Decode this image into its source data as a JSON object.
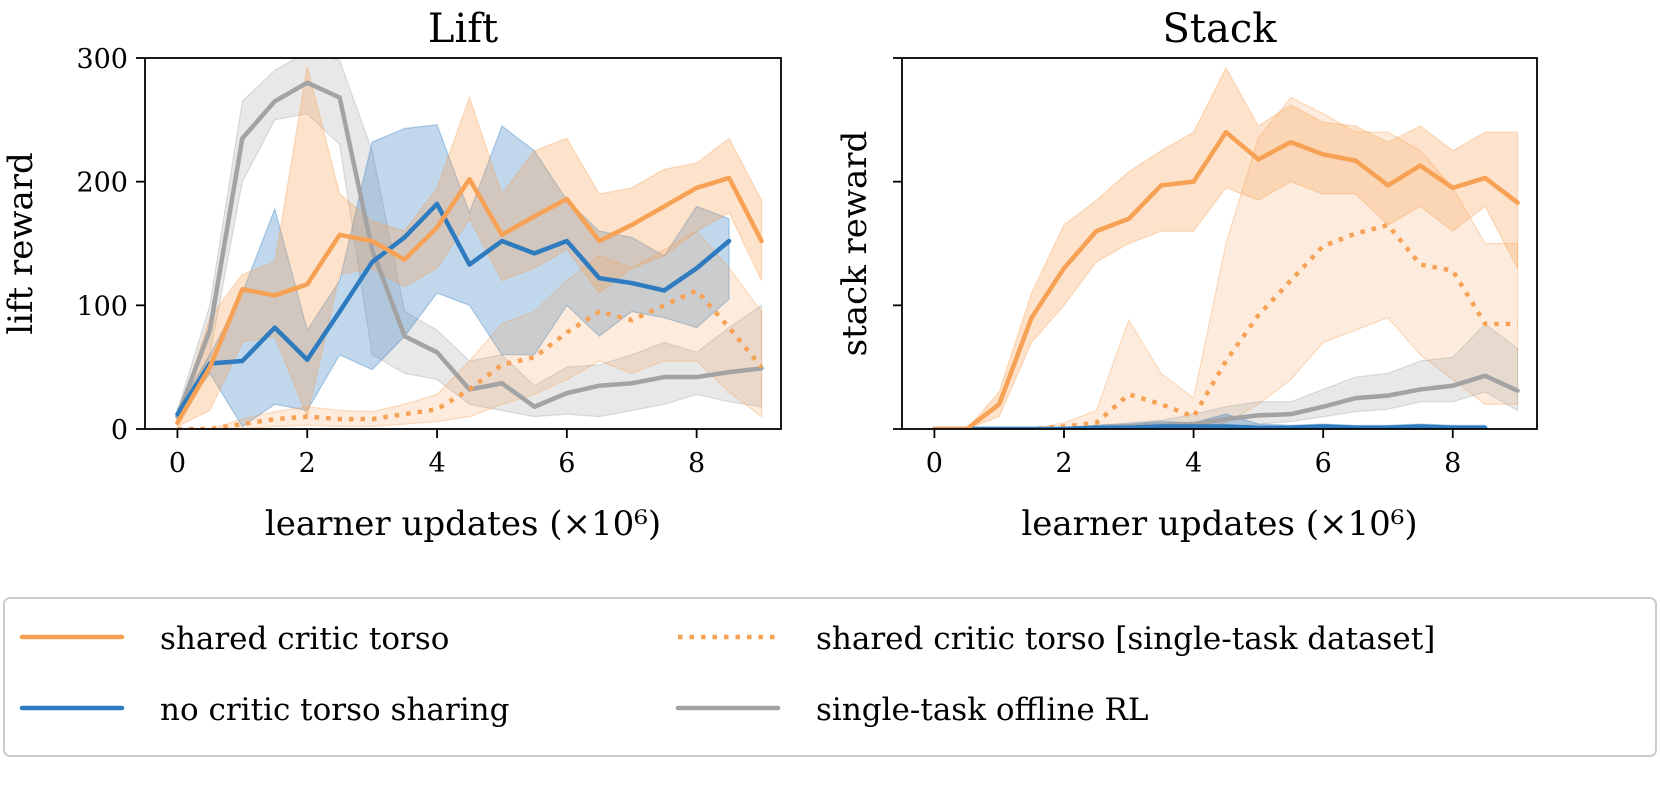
{
  "colors": {
    "shared": "#f7a155",
    "nosharing": "#2f7bbf",
    "offline": "#a3a3a3"
  },
  "legend": {
    "items": [
      {
        "label": "shared critic torso",
        "series": "shared"
      },
      {
        "label": "shared critic torso [single-task dataset]",
        "series": "shared_single"
      },
      {
        "label": "no critic torso sharing",
        "series": "nosharing"
      },
      {
        "label": "single-task offline RL",
        "series": "offline"
      }
    ]
  },
  "chart_data": [
    {
      "type": "line",
      "title": "Lift",
      "xlabel": "learner updates (×10⁶)",
      "ylabel": "lift reward",
      "xlim": [
        -0.5,
        9.3
      ],
      "ylim": [
        0,
        300
      ],
      "xticks": [
        0,
        2,
        4,
        6,
        8
      ],
      "yticks": [
        0,
        100,
        200,
        300
      ],
      "show_ytick_labels": true,
      "series": [
        {
          "name": "single-task offline RL",
          "key": "offline",
          "style": "solid",
          "x": [
            0,
            0.5,
            1,
            1.5,
            2,
            2.5,
            3,
            3.5,
            4,
            4.5,
            5,
            5.5,
            6,
            6.5,
            7,
            7.5,
            8,
            8.5,
            9
          ],
          "y": [
            10,
            80,
            235,
            265,
            280,
            268,
            145,
            75,
            62,
            32,
            37,
            18,
            29,
            35,
            37,
            42,
            42,
            46,
            49
          ],
          "lower": [
            5,
            60,
            200,
            250,
            255,
            230,
            60,
            45,
            40,
            20,
            15,
            10,
            12,
            10,
            15,
            20,
            28,
            22,
            18
          ],
          "upper": [
            15,
            100,
            265,
            290,
            305,
            298,
            225,
            95,
            80,
            55,
            60,
            35,
            50,
            52,
            60,
            70,
            62,
            82,
            100
          ]
        },
        {
          "name": "no critic torso sharing",
          "key": "nosharing",
          "style": "solid",
          "x": [
            0,
            0.5,
            1,
            1.5,
            2,
            2.5,
            3,
            3.5,
            4,
            4.5,
            5,
            5.5,
            6,
            6.5,
            7,
            7.5,
            8,
            8.5
          ],
          "y": [
            12,
            53,
            55,
            82,
            56,
            95,
            135,
            155,
            182,
            133,
            152,
            142,
            152,
            122,
            118,
            112,
            130,
            152
          ],
          "lower": [
            8,
            45,
            2,
            20,
            15,
            60,
            48,
            75,
            110,
            100,
            60,
            60,
            100,
            75,
            95,
            90,
            82,
            105
          ],
          "upper": [
            16,
            60,
            110,
            178,
            80,
            120,
            232,
            243,
            246,
            175,
            245,
            225,
            185,
            160,
            155,
            140,
            180,
            170
          ]
        },
        {
          "name": "shared critic torso",
          "key": "shared",
          "style": "solid",
          "x": [
            0,
            0.5,
            1,
            1.5,
            2,
            2.5,
            3,
            3.5,
            4,
            4.5,
            5,
            5.5,
            6,
            6.5,
            7,
            7.5,
            8,
            8.5,
            9
          ],
          "y": [
            5,
            50,
            113,
            108,
            117,
            157,
            152,
            137,
            163,
            202,
            157,
            172,
            186,
            152,
            165,
            180,
            195,
            203,
            152
          ],
          "lower": [
            2,
            15,
            70,
            75,
            10,
            125,
            130,
            115,
            130,
            170,
            120,
            130,
            145,
            110,
            130,
            140,
            160,
            175,
            120
          ],
          "upper": [
            8,
            90,
            125,
            135,
            293,
            190,
            168,
            160,
            195,
            268,
            190,
            225,
            235,
            190,
            195,
            210,
            215,
            235,
            185
          ]
        },
        {
          "name": "shared critic torso [single-task dataset]",
          "key": "shared",
          "style": "dotted",
          "x": [
            0,
            0.5,
            1,
            1.5,
            2,
            2.5,
            3,
            3.5,
            4,
            4.5,
            5,
            5.5,
            6,
            6.5,
            7,
            7.5,
            8,
            8.5,
            9
          ],
          "y": [
            0,
            0,
            4,
            8,
            10,
            8,
            8,
            12,
            16,
            32,
            52,
            58,
            78,
            95,
            88,
            100,
            112,
            82,
            50
          ],
          "lower": [
            0,
            0,
            0,
            2,
            3,
            2,
            2,
            4,
            6,
            10,
            20,
            28,
            40,
            55,
            45,
            55,
            55,
            30,
            10
          ],
          "upper": [
            0,
            0,
            8,
            14,
            18,
            15,
            14,
            20,
            28,
            55,
            85,
            95,
            120,
            140,
            130,
            145,
            160,
            130,
            95
          ]
        }
      ]
    },
    {
      "type": "line",
      "title": "Stack",
      "xlabel": "learner updates (×10⁶)",
      "ylabel": "stack reward",
      "xlim": [
        -0.5,
        9.3
      ],
      "ylim": [
        0,
        300
      ],
      "xticks": [
        0,
        2,
        4,
        6,
        8
      ],
      "yticks": [
        0,
        100,
        200,
        300
      ],
      "show_ytick_labels": false,
      "series": [
        {
          "name": "shared critic torso [single-task dataset]",
          "key": "shared",
          "style": "dotted",
          "x": [
            0,
            0.5,
            1,
            1.5,
            2,
            2.5,
            3,
            3.5,
            4,
            4.5,
            5,
            5.5,
            6,
            6.5,
            7,
            7.5,
            8,
            8.5,
            9
          ],
          "y": [
            0,
            0,
            0,
            0,
            2,
            5,
            28,
            20,
            10,
            55,
            92,
            120,
            148,
            158,
            165,
            133,
            128,
            85,
            85
          ],
          "lower": [
            0,
            0,
            0,
            0,
            0,
            0,
            2,
            2,
            0,
            5,
            20,
            40,
            70,
            80,
            90,
            60,
            40,
            20,
            20
          ],
          "upper": [
            0,
            0,
            0,
            0,
            5,
            15,
            88,
            45,
            25,
            150,
            235,
            268,
            255,
            240,
            240,
            225,
            195,
            150,
            150
          ]
        },
        {
          "name": "single-task offline RL",
          "key": "offline",
          "style": "solid",
          "x": [
            0,
            0.5,
            1,
            1.5,
            2,
            2.5,
            3,
            3.5,
            4,
            4.5,
            5,
            5.5,
            6,
            6.5,
            7,
            7.5,
            8,
            8.5,
            9
          ],
          "y": [
            0,
            0,
            0,
            0,
            0,
            1,
            2,
            3,
            4,
            8,
            11,
            12,
            18,
            25,
            27,
            32,
            35,
            43,
            31
          ],
          "lower": [
            0,
            0,
            0,
            0,
            0,
            0,
            0,
            0,
            0,
            2,
            4,
            6,
            10,
            14,
            16,
            22,
            22,
            30,
            15
          ],
          "upper": [
            0,
            0,
            0,
            0,
            0,
            3,
            5,
            7,
            12,
            18,
            22,
            22,
            32,
            42,
            45,
            55,
            58,
            85,
            65
          ]
        },
        {
          "name": "no critic torso sharing",
          "key": "nosharing",
          "style": "solid",
          "x": [
            0,
            0.5,
            1,
            1.5,
            2,
            2.5,
            3,
            3.5,
            4,
            4.5,
            5,
            5.5,
            6,
            6.5,
            7,
            7.5,
            8,
            8.5
          ],
          "y": [
            0,
            0,
            0,
            0,
            0,
            1,
            1,
            2,
            2,
            2,
            1,
            1,
            2,
            1,
            1,
            2,
            1,
            1
          ],
          "lower": [
            0,
            0,
            0,
            0,
            0,
            0,
            0,
            0,
            0,
            0,
            0,
            0,
            0,
            0,
            0,
            0,
            0,
            0
          ],
          "upper": [
            0,
            0,
            0,
            0,
            1,
            3,
            4,
            6,
            5,
            12,
            4,
            3,
            4,
            3,
            3,
            4,
            3,
            3
          ]
        },
        {
          "name": "shared critic torso",
          "key": "shared",
          "style": "solid",
          "x": [
            0,
            0.5,
            1,
            1.5,
            2,
            2.5,
            3,
            3.5,
            4,
            4.5,
            5,
            5.5,
            6,
            6.5,
            7,
            7.5,
            8,
            8.5,
            9
          ],
          "y": [
            0,
            0,
            20,
            90,
            130,
            160,
            170,
            197,
            200,
            240,
            218,
            232,
            222,
            217,
            197,
            213,
            195,
            203,
            183
          ],
          "lower": [
            0,
            0,
            10,
            70,
            100,
            135,
            150,
            160,
            160,
            195,
            185,
            200,
            190,
            190,
            165,
            180,
            160,
            180,
            130
          ],
          "upper": [
            0,
            0,
            30,
            110,
            165,
            185,
            208,
            225,
            240,
            292,
            245,
            262,
            248,
            245,
            232,
            245,
            225,
            240,
            240
          ]
        }
      ]
    }
  ]
}
